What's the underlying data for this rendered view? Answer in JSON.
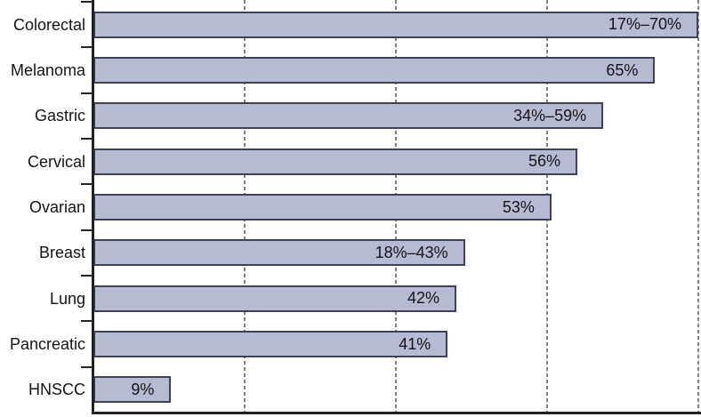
{
  "chart_data": {
    "type": "bar",
    "orientation": "horizontal",
    "categories": [
      "Colorectal",
      "Melanoma",
      "Gastric",
      "Cervical",
      "Ovarian",
      "Breast",
      "Lung",
      "Pancreatic",
      "HNSCC"
    ],
    "values": [
      70,
      65,
      59,
      56,
      53,
      43,
      42,
      41,
      9
    ],
    "bar_labels": [
      "17%–70%",
      "65%",
      "34%–59%",
      "56%",
      "53%",
      "18%–43%",
      "42%",
      "41%",
      "9%"
    ],
    "xlim": [
      0,
      70
    ],
    "gridline_values": [
      17.5,
      35,
      52.5,
      70
    ],
    "grid": "vertical-dashed",
    "legend": "none",
    "axis_tick_labels": "none",
    "value_label_position": "inside-end",
    "colors": {
      "bar_fill": "#b6bbd3",
      "bar_border": "#3e4256",
      "axis": "#212121",
      "gridline": "#7f7f7f",
      "text": "#141414"
    }
  }
}
